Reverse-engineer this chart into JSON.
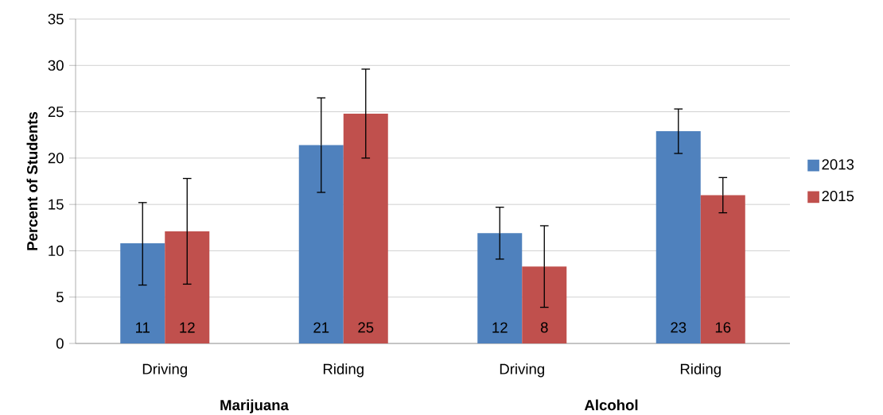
{
  "chart_data": {
    "type": "bar",
    "ylabel": "Percent of Students",
    "categories": [
      "Driving",
      "Riding",
      "Driving",
      "Riding"
    ],
    "series": [
      {
        "name": "2013",
        "color": "#4f81bd",
        "values": [
          10.8,
          21.4,
          11.9,
          22.9
        ],
        "errors": [
          [
            6.3,
            15.2
          ],
          [
            16.3,
            26.5
          ],
          [
            9.1,
            14.7
          ],
          [
            20.5,
            25.3
          ]
        ],
        "value_labels": [
          "11",
          "21",
          "12",
          "23"
        ]
      },
      {
        "name": "2015",
        "color": "#c0504d",
        "values": [
          12.1,
          24.8,
          8.3,
          16.0
        ],
        "errors": [
          [
            6.4,
            17.8
          ],
          [
            20.0,
            29.6
          ],
          [
            3.9,
            12.7
          ],
          [
            14.1,
            17.9
          ]
        ],
        "value_labels": [
          "12",
          "25",
          "8",
          "16"
        ]
      }
    ],
    "annotations": [
      "Marijuana",
      "Alcohol"
    ],
    "ylim": [
      0,
      35
    ],
    "yticks": [
      0,
      5,
      10,
      15,
      20,
      25,
      30,
      35
    ],
    "grid": "y",
    "legend": "right"
  }
}
